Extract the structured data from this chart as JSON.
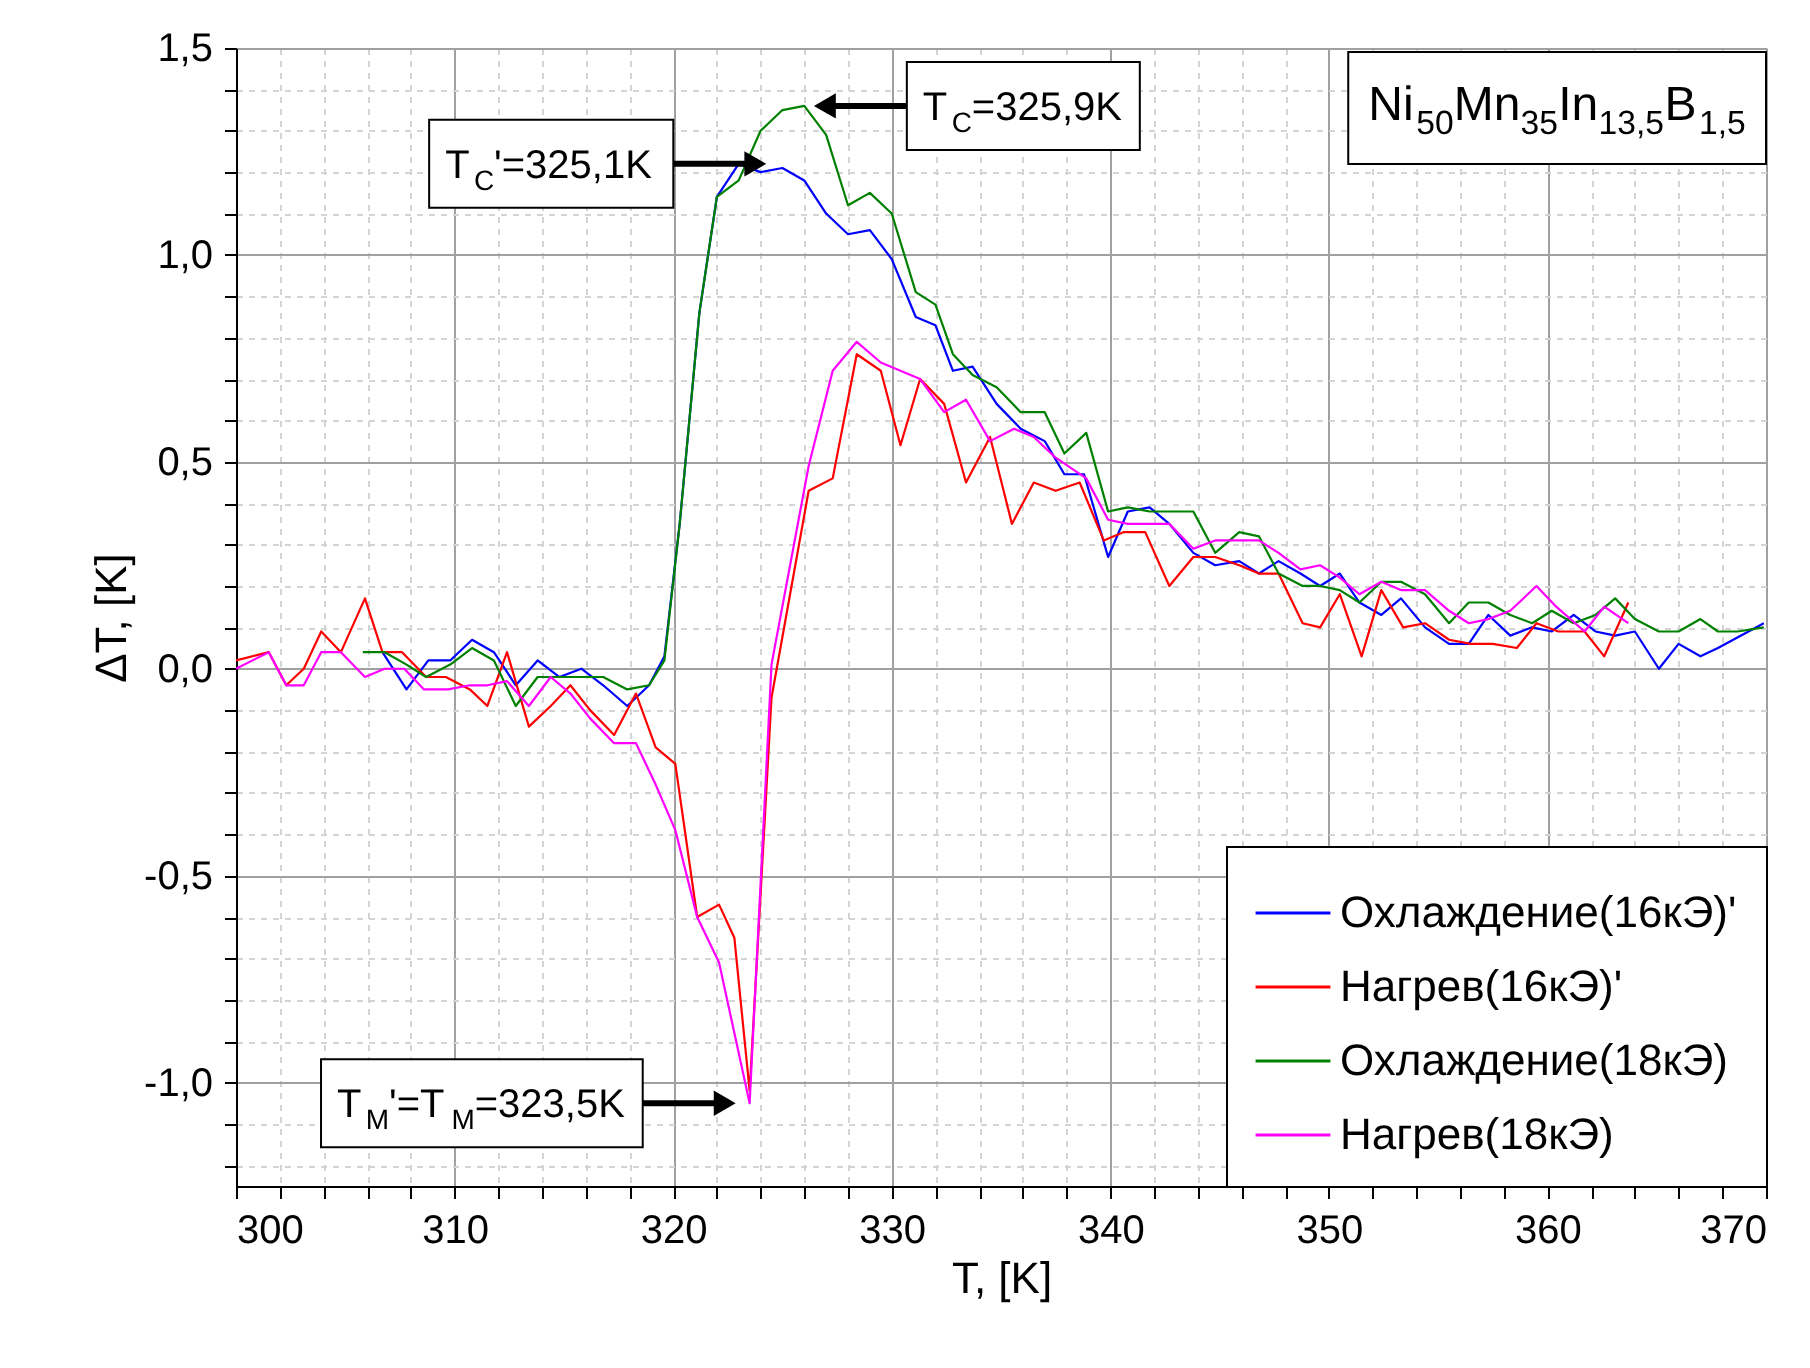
{
  "chart_data": {
    "type": "line",
    "xlabel": "T, [K]",
    "ylabel": "ΔT, [K]",
    "xlim": [
      300,
      370
    ],
    "ylim": [
      -1.25,
      1.5
    ],
    "xticks": [
      300,
      {
        "value": 302,
        "label": null
      },
      {
        "value": 304,
        "label": null
      },
      {
        "value": 306,
        "label": null
      },
      {
        "value": 308,
        "label": null
      },
      310,
      {
        "value": 312,
        "label": null
      },
      {
        "value": 314,
        "label": null
      },
      {
        "value": 316,
        "label": null
      },
      {
        "value": 318,
        "label": null
      },
      320,
      {
        "value": 322,
        "label": null
      },
      {
        "value": 324,
        "label": null
      },
      {
        "value": 326,
        "label": null
      },
      {
        "value": 328,
        "label": null
      },
      330,
      {
        "value": 332,
        "label": null
      },
      {
        "value": 334,
        "label": null
      },
      {
        "value": 336,
        "label": null
      },
      {
        "value": 338,
        "label": null
      },
      340,
      {
        "value": 342,
        "label": null
      },
      {
        "value": 344,
        "label": null
      },
      {
        "value": 346,
        "label": null
      },
      {
        "value": 348,
        "label": null
      },
      350,
      {
        "value": 352,
        "label": null
      },
      {
        "value": 354,
        "label": null
      },
      {
        "value": 356,
        "label": null
      },
      {
        "value": 358,
        "label": null
      },
      360,
      {
        "value": 362,
        "label": null
      },
      {
        "value": 364,
        "label": null
      },
      {
        "value": 366,
        "label": null
      },
      {
        "value": 368,
        "label": null
      },
      370
    ],
    "yticks": [
      {
        "value": -1.2,
        "label": null
      },
      {
        "value": -1.1,
        "label": null
      },
      {
        "value": -1.0,
        "label": "-1,0"
      },
      {
        "value": -0.9,
        "label": null
      },
      {
        "value": -0.8,
        "label": null
      },
      {
        "value": -0.7,
        "label": null
      },
      {
        "value": -0.6,
        "label": null
      },
      {
        "value": -0.5,
        "label": "-0,5"
      },
      {
        "value": -0.4,
        "label": null
      },
      {
        "value": -0.3,
        "label": null
      },
      {
        "value": -0.2,
        "label": null
      },
      {
        "value": -0.1,
        "label": null
      },
      {
        "value": 0.0,
        "label": "0,0"
      },
      {
        "value": 0.1,
        "label": null
      },
      {
        "value": 0.2,
        "label": null
      },
      {
        "value": 0.3,
        "label": null
      },
      {
        "value": 0.4,
        "label": null
      },
      {
        "value": 0.5,
        "label": "0,5"
      },
      {
        "value": 0.6,
        "label": null
      },
      {
        "value": 0.7,
        "label": null
      },
      {
        "value": 0.8,
        "label": null
      },
      {
        "value": 0.9,
        "label": null
      },
      {
        "value": 1.0,
        "label": "1,0"
      },
      {
        "value": 1.1,
        "label": null
      },
      {
        "value": 1.2,
        "label": null
      },
      {
        "value": 1.3,
        "label": null
      },
      {
        "value": 1.4,
        "label": null
      },
      {
        "value": 1.5,
        "label": "1,5"
      }
    ],
    "grid": true,
    "legend": "bottom right",
    "line_style": "solid",
    "marker": "none",
    "series": [
      {
        "name": "Охлаждение(16кЭ)'",
        "color": "#0000ff",
        "x": [
          306.7,
          307.8,
          308.8,
          309.8,
          310.8,
          311.8,
          312.8,
          313.8,
          314.8,
          315.8,
          316.8,
          317.9,
          318.9,
          319.6,
          320.3,
          321.2,
          322,
          323,
          324,
          325,
          326,
          327,
          328,
          329,
          330,
          331.1,
          332,
          332.8,
          333.7,
          334.8,
          335.9,
          337,
          337.9,
          338.8,
          339.9,
          340.8,
          341.8,
          342.7,
          343.8,
          344.8,
          345.9,
          346.8,
          347.7,
          348.7,
          349.6,
          350.5,
          351.4,
          352.4,
          353.3,
          354.4,
          355.5,
          356.4,
          357.3,
          358.3,
          359.3,
          360.2,
          361.2,
          362.2,
          363.1,
          364,
          365.1,
          366,
          367,
          367.8,
          369.9
        ],
        "values": [
          0.04,
          -0.05,
          0.02,
          0.02,
          0.07,
          0.04,
          -0.04,
          0.02,
          -0.02,
          0.0,
          -0.04,
          -0.09,
          -0.04,
          0.03,
          0.35,
          0.86,
          1.14,
          1.22,
          1.2,
          1.21,
          1.18,
          1.1,
          1.05,
          1.06,
          0.99,
          0.85,
          0.83,
          0.72,
          0.73,
          0.64,
          0.58,
          0.55,
          0.47,
          0.47,
          0.27,
          0.38,
          0.39,
          0.35,
          0.28,
          0.25,
          0.26,
          0.23,
          0.26,
          0.23,
          0.2,
          0.23,
          0.16,
          0.13,
          0.17,
          0.1,
          0.06,
          0.06,
          0.13,
          0.08,
          0.1,
          0.09,
          0.13,
          0.09,
          0.08,
          0.09,
          0.0,
          0.06,
          0.03,
          0.05,
          0.11
        ]
      },
      {
        "name": "Нагрев(16кЭ)'",
        "color": "#ff0000",
        "x": [
          300,
          301.5,
          302.3,
          303.1,
          303.9,
          304.8,
          305.9,
          306.7,
          307.6,
          308.7,
          309.6,
          310.7,
          311.5,
          312.4,
          313.4,
          314.4,
          315.3,
          316.2,
          317.3,
          318.3,
          319.2,
          320.1,
          321.1,
          322.1,
          322.8,
          323.5,
          324.5,
          326.2,
          327.3,
          328.4,
          329.5,
          330.4,
          331.3,
          332.4,
          333.4,
          334.5,
          335.5,
          336.5,
          337.5,
          338.6,
          339.7,
          340.6,
          341.6,
          342.7,
          343.8,
          344.8,
          345.9,
          346.8,
          347.7,
          348.8,
          349.6,
          350.5,
          351.5,
          352.4,
          353.4,
          354.4,
          355.5,
          356.5,
          357.5,
          358.6,
          359.5,
          360.5,
          361.7,
          362.6,
          363.7
        ],
        "values": [
          0.02,
          0.04,
          -0.04,
          0.0,
          0.09,
          0.04,
          0.17,
          0.04,
          0.04,
          -0.02,
          -0.02,
          -0.05,
          -0.09,
          0.04,
          -0.14,
          -0.09,
          -0.04,
          -0.1,
          -0.16,
          -0.06,
          -0.19,
          -0.23,
          -0.6,
          -0.57,
          -0.65,
          -1.02,
          -0.07,
          0.43,
          0.46,
          0.76,
          0.72,
          0.54,
          0.7,
          0.64,
          0.45,
          0.56,
          0.35,
          0.45,
          0.43,
          0.45,
          0.31,
          0.33,
          0.33,
          0.2,
          0.27,
          0.27,
          0.25,
          0.23,
          0.23,
          0.11,
          0.1,
          0.18,
          0.03,
          0.19,
          0.1,
          0.11,
          0.07,
          0.06,
          0.06,
          0.05,
          0.11,
          0.09,
          0.09,
          0.03,
          0.16
        ]
      },
      {
        "name": "Охлаждение(18кЭ)",
        "color": "#008000",
        "x": [
          305.8,
          306.8,
          307.8,
          308.7,
          309.8,
          310.8,
          311.8,
          312.8,
          313.8,
          314.8,
          315.8,
          316.8,
          317.9,
          318.9,
          319.6,
          320.3,
          321.2,
          322,
          323,
          324,
          325,
          326,
          327,
          328,
          329,
          330,
          331.1,
          332,
          332.8,
          333.7,
          334.8,
          335.9,
          337,
          337.9,
          338.9,
          339.9,
          340.8,
          341.8,
          342.7,
          343.8,
          344.8,
          345.9,
          346.8,
          347.7,
          348.8,
          349.6,
          350.5,
          351.4,
          352.4,
          353.3,
          354.4,
          355.5,
          356.4,
          357.3,
          358.3,
          359.3,
          360.2,
          361.2,
          362.2,
          363.1,
          364,
          365.1,
          366,
          367,
          367.8,
          368.7,
          369.9
        ],
        "values": [
          0.04,
          0.04,
          0.01,
          -0.02,
          0.01,
          0.05,
          0.02,
          -0.09,
          -0.02,
          -0.02,
          -0.02,
          -0.02,
          -0.05,
          -0.04,
          0.02,
          0.35,
          0.86,
          1.14,
          1.18,
          1.3,
          1.35,
          1.36,
          1.29,
          1.12,
          1.15,
          1.1,
          0.91,
          0.88,
          0.76,
          0.71,
          0.68,
          0.62,
          0.62,
          0.52,
          0.57,
          0.38,
          0.39,
          0.38,
          0.38,
          0.38,
          0.28,
          0.33,
          0.32,
          0.23,
          0.2,
          0.2,
          0.19,
          0.16,
          0.21,
          0.21,
          0.18,
          0.11,
          0.16,
          0.16,
          0.13,
          0.11,
          0.14,
          0.11,
          0.13,
          0.17,
          0.12,
          0.09,
          0.09,
          0.12,
          0.09,
          0.09,
          0.1
        ]
      },
      {
        "name": "Нагрев(18кЭ)",
        "color": "#ff00ff",
        "x": [
          300,
          301.5,
          302.3,
          303.1,
          303.9,
          304.8,
          305.9,
          306.8,
          307.7,
          308.6,
          309.7,
          310.7,
          311.5,
          312.4,
          313.4,
          314.4,
          315.3,
          316.2,
          317.3,
          318.3,
          319.2,
          320.1,
          321.1,
          322.1,
          323.5,
          324.5,
          326.2,
          327.3,
          328.4,
          329.5,
          330.4,
          331.3,
          332.4,
          333.4,
          334.5,
          335.6,
          336.5,
          337.5,
          338.9,
          339.9,
          340.8,
          341.8,
          342.7,
          343.8,
          344.8,
          345.9,
          346.8,
          347.7,
          348.7,
          349.6,
          350.5,
          351.4,
          352.4,
          353.3,
          354.4,
          355.5,
          356.4,
          357.3,
          358.3,
          359.5,
          360.4,
          361.7,
          362.6,
          363.7
        ],
        "values": [
          0.0,
          0.04,
          -0.04,
          -0.04,
          0.04,
          0.04,
          -0.02,
          0.0,
          0.0,
          -0.05,
          -0.05,
          -0.04,
          -0.04,
          -0.03,
          -0.09,
          -0.02,
          -0.06,
          -0.12,
          -0.18,
          -0.18,
          -0.28,
          -0.39,
          -0.6,
          -0.71,
          -1.05,
          0.01,
          0.49,
          0.72,
          0.79,
          0.74,
          0.72,
          0.7,
          0.62,
          0.65,
          0.55,
          0.58,
          0.56,
          0.51,
          0.46,
          0.36,
          0.35,
          0.35,
          0.35,
          0.29,
          0.31,
          0.31,
          0.31,
          0.28,
          0.24,
          0.25,
          0.22,
          0.18,
          0.21,
          0.19,
          0.19,
          0.14,
          0.11,
          0.12,
          0.14,
          0.2,
          0.15,
          0.09,
          0.15,
          0.11
        ]
      }
    ],
    "annotations": [
      {
        "text": "T$_{C}$'=325,1K",
        "x": 324.4,
        "y": 1.22
      },
      {
        "text": "T$_{C}$=325,9K",
        "x": 326.3,
        "y": 1.36
      },
      {
        "text": "T$_{M}$'=T$_{M}$=323,5K",
        "x": 323.0,
        "y": -1.05
      },
      "Ni$_{50}$Mn$_{35}$In$_{13,5}$B$_{1,5}$"
    ]
  }
}
